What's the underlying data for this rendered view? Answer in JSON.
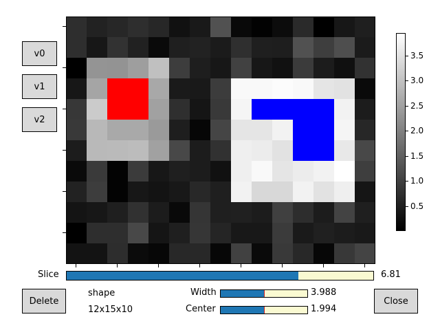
{
  "buttons": {
    "v0": "v0",
    "v1": "v1",
    "v2": "v2",
    "delete": "Delete",
    "close": "Close"
  },
  "colors": {
    "slider_fill": "#1f77b4",
    "slider_track": "#fafad2",
    "slider_marker": "#d62728",
    "button_bg": "#d9d9d9",
    "roi_red": "#ff0000",
    "roi_blue": "#0000ff"
  },
  "image": {
    "rows": 12,
    "cols": 15,
    "values": [
      [
        0.72,
        0.52,
        0.61,
        0.71,
        0.6,
        0.26,
        0.38,
        1.25,
        0.14,
        0.03,
        0.19,
        0.65,
        0.0,
        0.35,
        0.48
      ],
      [
        0.72,
        0.35,
        0.78,
        0.51,
        0.15,
        0.48,
        0.53,
        0.42,
        0.73,
        0.48,
        0.46,
        1.26,
        0.96,
        1.21,
        0.42
      ],
      [
        0.0,
        2.3,
        2.28,
        2.45,
        2.97,
        0.95,
        0.46,
        0.35,
        1.01,
        0.36,
        0.26,
        0.92,
        0.44,
        0.25,
        0.78
      ],
      [
        0.35,
        2.55,
        3.75,
        3.75,
        2.6,
        0.4,
        0.39,
        0.93,
        3.85,
        3.85,
        3.9,
        3.85,
        3.55,
        3.5,
        0.15
      ],
      [
        0.85,
        3.15,
        3.75,
        3.75,
        2.5,
        0.73,
        0.32,
        0.88,
        3.8,
        3.9,
        3.9,
        3.9,
        3.9,
        3.75,
        0.44
      ],
      [
        0.88,
        2.85,
        2.62,
        2.62,
        2.38,
        0.46,
        0.1,
        1.07,
        3.55,
        3.55,
        3.75,
        3.9,
        3.9,
        3.8,
        0.61
      ],
      [
        0.43,
        2.87,
        2.88,
        2.91,
        2.5,
        1.12,
        0.43,
        0.76,
        3.7,
        3.65,
        3.5,
        3.9,
        3.9,
        3.6,
        1.12
      ],
      [
        0.16,
        0.9,
        0.04,
        0.92,
        0.35,
        0.48,
        0.43,
        0.26,
        3.7,
        3.85,
        3.55,
        3.65,
        3.75,
        3.95,
        0.96
      ],
      [
        0.52,
        0.95,
        0.05,
        0.35,
        0.29,
        0.37,
        0.62,
        0.48,
        3.75,
        3.35,
        3.35,
        3.75,
        3.5,
        3.7,
        0.32
      ],
      [
        0.31,
        0.35,
        0.48,
        0.76,
        0.44,
        0.14,
        0.82,
        0.48,
        0.49,
        0.43,
        0.99,
        0.7,
        0.43,
        1.04,
        0.48
      ],
      [
        0.0,
        0.71,
        0.71,
        1.12,
        0.33,
        0.48,
        0.83,
        0.58,
        0.37,
        0.37,
        0.92,
        0.41,
        0.49,
        0.43,
        0.39
      ],
      [
        0.29,
        0.29,
        0.7,
        0.17,
        0.11,
        0.62,
        0.62,
        0.11,
        1.0,
        0.16,
        0.89,
        0.62,
        0.11,
        0.86,
        1.05
      ]
    ],
    "roi_red": {
      "row_start": 3,
      "row_end": 4,
      "col_start": 2,
      "col_end": 3
    },
    "roi_blue": [
      {
        "row_start": 4,
        "row_end": 4,
        "col_start": 9,
        "col_end": 12
      },
      {
        "row_start": 5,
        "row_end": 6,
        "col_start": 11,
        "col_end": 12
      }
    ]
  },
  "colorbar": {
    "min": 0,
    "max": 3.95,
    "ticks": [
      "0.5",
      "1.0",
      "1.5",
      "2.0",
      "2.5",
      "3.0",
      "3.5"
    ],
    "tick_values": [
      0.5,
      1.0,
      1.5,
      2.0,
      2.5,
      3.0,
      3.5
    ]
  },
  "slice": {
    "label": "Slice",
    "value_text": "6.81",
    "value": 6.81,
    "min": 0,
    "max": 9
  },
  "shape": {
    "label": "shape",
    "value": "12x15x10"
  },
  "width": {
    "label": "Width",
    "value_text": "3.988",
    "value": 3.988,
    "min": 0,
    "max": 7.976,
    "marker": 3.988
  },
  "center": {
    "label": "Center",
    "value_text": "1.994",
    "value": 1.994,
    "min": 0,
    "max": 3.988,
    "marker": 1.994
  }
}
